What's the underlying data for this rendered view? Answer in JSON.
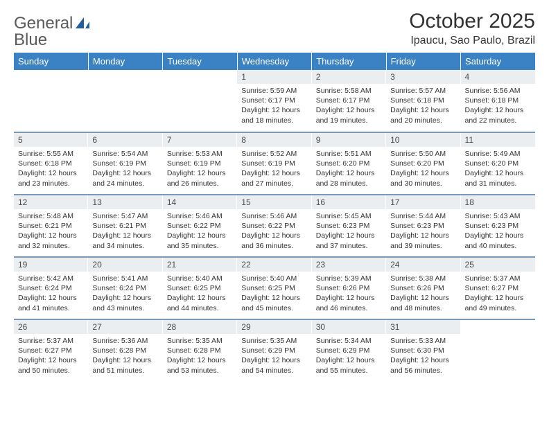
{
  "logo": {
    "text_a": "General",
    "text_b": "Blue"
  },
  "header": {
    "month_title": "October 2025",
    "location": "Ipaucu, Sao Paulo, Brazil"
  },
  "styling": {
    "header_bg": "#3b82c4",
    "header_text": "#ffffff",
    "daynum_bg": "#ebeef1",
    "row_divider": "#7a99b8",
    "body_text": "#333333",
    "logo_blue": "#1f5f9e",
    "page_bg": "#ffffff"
  },
  "calendar": {
    "type": "table",
    "columns": [
      "Sunday",
      "Monday",
      "Tuesday",
      "Wednesday",
      "Thursday",
      "Friday",
      "Saturday"
    ],
    "weeks": [
      [
        null,
        null,
        null,
        {
          "n": "1",
          "sr": "5:59 AM",
          "ss": "6:17 PM",
          "dl": "12 hours and 18 minutes."
        },
        {
          "n": "2",
          "sr": "5:58 AM",
          "ss": "6:17 PM",
          "dl": "12 hours and 19 minutes."
        },
        {
          "n": "3",
          "sr": "5:57 AM",
          "ss": "6:18 PM",
          "dl": "12 hours and 20 minutes."
        },
        {
          "n": "4",
          "sr": "5:56 AM",
          "ss": "6:18 PM",
          "dl": "12 hours and 22 minutes."
        }
      ],
      [
        {
          "n": "5",
          "sr": "5:55 AM",
          "ss": "6:18 PM",
          "dl": "12 hours and 23 minutes."
        },
        {
          "n": "6",
          "sr": "5:54 AM",
          "ss": "6:19 PM",
          "dl": "12 hours and 24 minutes."
        },
        {
          "n": "7",
          "sr": "5:53 AM",
          "ss": "6:19 PM",
          "dl": "12 hours and 26 minutes."
        },
        {
          "n": "8",
          "sr": "5:52 AM",
          "ss": "6:19 PM",
          "dl": "12 hours and 27 minutes."
        },
        {
          "n": "9",
          "sr": "5:51 AM",
          "ss": "6:20 PM",
          "dl": "12 hours and 28 minutes."
        },
        {
          "n": "10",
          "sr": "5:50 AM",
          "ss": "6:20 PM",
          "dl": "12 hours and 30 minutes."
        },
        {
          "n": "11",
          "sr": "5:49 AM",
          "ss": "6:20 PM",
          "dl": "12 hours and 31 minutes."
        }
      ],
      [
        {
          "n": "12",
          "sr": "5:48 AM",
          "ss": "6:21 PM",
          "dl": "12 hours and 32 minutes."
        },
        {
          "n": "13",
          "sr": "5:47 AM",
          "ss": "6:21 PM",
          "dl": "12 hours and 34 minutes."
        },
        {
          "n": "14",
          "sr": "5:46 AM",
          "ss": "6:22 PM",
          "dl": "12 hours and 35 minutes."
        },
        {
          "n": "15",
          "sr": "5:46 AM",
          "ss": "6:22 PM",
          "dl": "12 hours and 36 minutes."
        },
        {
          "n": "16",
          "sr": "5:45 AM",
          "ss": "6:23 PM",
          "dl": "12 hours and 37 minutes."
        },
        {
          "n": "17",
          "sr": "5:44 AM",
          "ss": "6:23 PM",
          "dl": "12 hours and 39 minutes."
        },
        {
          "n": "18",
          "sr": "5:43 AM",
          "ss": "6:23 PM",
          "dl": "12 hours and 40 minutes."
        }
      ],
      [
        {
          "n": "19",
          "sr": "5:42 AM",
          "ss": "6:24 PM",
          "dl": "12 hours and 41 minutes."
        },
        {
          "n": "20",
          "sr": "5:41 AM",
          "ss": "6:24 PM",
          "dl": "12 hours and 43 minutes."
        },
        {
          "n": "21",
          "sr": "5:40 AM",
          "ss": "6:25 PM",
          "dl": "12 hours and 44 minutes."
        },
        {
          "n": "22",
          "sr": "5:40 AM",
          "ss": "6:25 PM",
          "dl": "12 hours and 45 minutes."
        },
        {
          "n": "23",
          "sr": "5:39 AM",
          "ss": "6:26 PM",
          "dl": "12 hours and 46 minutes."
        },
        {
          "n": "24",
          "sr": "5:38 AM",
          "ss": "6:26 PM",
          "dl": "12 hours and 48 minutes."
        },
        {
          "n": "25",
          "sr": "5:37 AM",
          "ss": "6:27 PM",
          "dl": "12 hours and 49 minutes."
        }
      ],
      [
        {
          "n": "26",
          "sr": "5:37 AM",
          "ss": "6:27 PM",
          "dl": "12 hours and 50 minutes."
        },
        {
          "n": "27",
          "sr": "5:36 AM",
          "ss": "6:28 PM",
          "dl": "12 hours and 51 minutes."
        },
        {
          "n": "28",
          "sr": "5:35 AM",
          "ss": "6:28 PM",
          "dl": "12 hours and 53 minutes."
        },
        {
          "n": "29",
          "sr": "5:35 AM",
          "ss": "6:29 PM",
          "dl": "12 hours and 54 minutes."
        },
        {
          "n": "30",
          "sr": "5:34 AM",
          "ss": "6:29 PM",
          "dl": "12 hours and 55 minutes."
        },
        {
          "n": "31",
          "sr": "5:33 AM",
          "ss": "6:30 PM",
          "dl": "12 hours and 56 minutes."
        },
        null
      ]
    ]
  },
  "labels": {
    "sunrise": "Sunrise:",
    "sunset": "Sunset:",
    "daylight": "Daylight:"
  }
}
